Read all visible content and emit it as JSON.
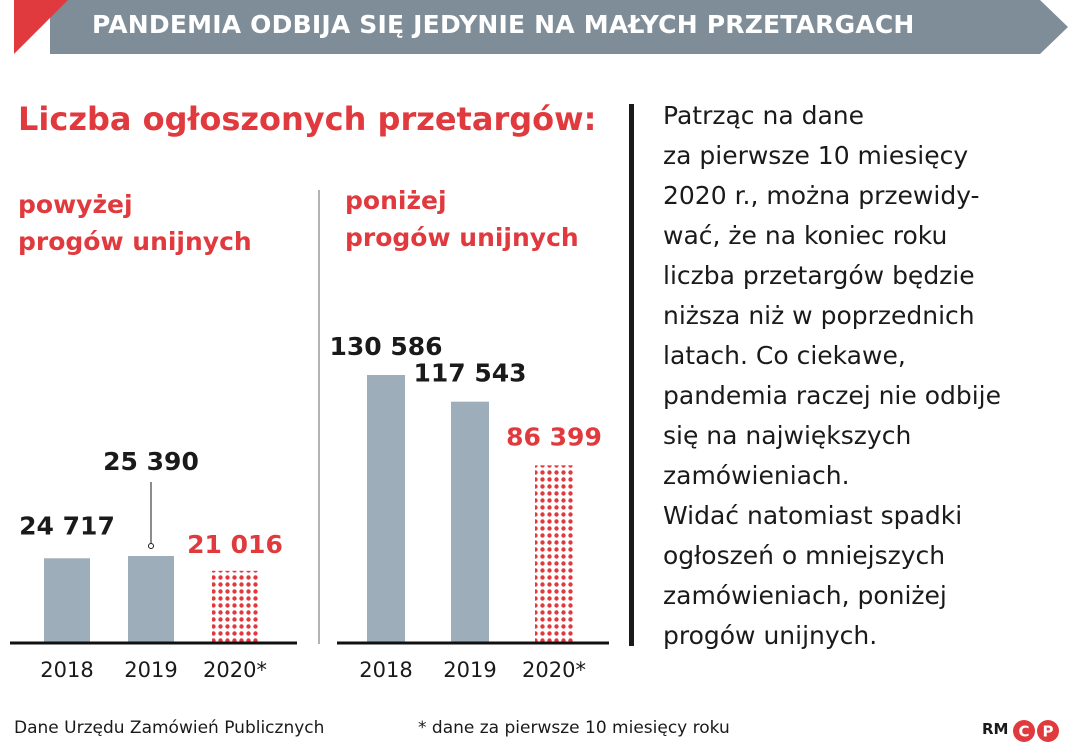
{
  "banner": {
    "title": "PANDEMIA ODBIJA SIĘ JEDYNIE NA MAŁYCH PRZETARGACH"
  },
  "heading": "Liczba ogłoszonych przetargów:",
  "colors": {
    "accent": "#e03a3e",
    "bar": "#9eadba",
    "banner": "#7f8d98",
    "text": "#1a1a1a"
  },
  "chart_data": [
    {
      "type": "bar",
      "title_lines": [
        "powyżej",
        "progów unijnych"
      ],
      "categories": [
        "2018",
        "2019",
        "2020*"
      ],
      "values": [
        24717,
        25390,
        21016
      ],
      "value_labels": [
        "24 717",
        "25 390",
        "21 016"
      ],
      "highlight_last": true
    },
    {
      "type": "bar",
      "title_lines": [
        "poniżej",
        "progów unijnych"
      ],
      "categories": [
        "2018",
        "2019",
        "2020*"
      ],
      "values": [
        130586,
        117543,
        86399
      ],
      "value_labels": [
        "130 586",
        "117 543",
        "86 399"
      ],
      "highlight_last": true
    }
  ],
  "body": {
    "lines": [
      "Patrząc na dane",
      "za pierwsze 10 miesięcy",
      "2020 r., można przewidy-",
      "wać, że na koniec roku",
      "liczba przetargów będzie",
      "niższa niż w poprzednich",
      "latach. Co ciekawe,",
      "pandemia raczej nie odbije",
      "się na największych",
      "zamówieniach.",
      "Widać natomiast spadki",
      "ogłoszeń o mniejszych",
      "zamówieniach, poniżej",
      "progów unijnych."
    ]
  },
  "footer": {
    "source": "Dane Urzędu Zamówień Publicznych",
    "note": "* dane za pierwsze 10 miesięcy roku",
    "credit": "RM"
  }
}
